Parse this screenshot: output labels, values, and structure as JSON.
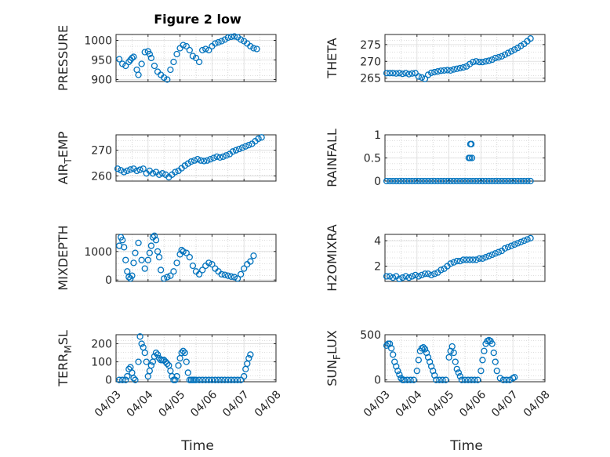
{
  "figure": {
    "title": "Figure 2 low",
    "xlabel": "Time"
  },
  "colors": {
    "marker": "#0072BD",
    "axis": "#262626",
    "grid": "#bdbdbd"
  },
  "chart_data": [
    {
      "type": "scatter",
      "ylabel": "PRESSURE",
      "ylim": [
        895,
        1015
      ],
      "yticks": [
        900,
        950,
        1000
      ],
      "xlim": [
        0,
        5
      ],
      "show_xticklabels": false,
      "x": [
        0.1,
        0.2,
        0.3,
        0.4,
        0.45,
        0.5,
        0.55,
        0.65,
        0.7,
        0.8,
        0.9,
        1.0,
        1.05,
        1.1,
        1.2,
        1.3,
        1.4,
        1.5,
        1.6,
        1.7,
        1.8,
        1.9,
        2.0,
        2.1,
        2.2,
        2.3,
        2.4,
        2.5,
        2.6,
        2.7,
        2.8,
        2.9,
        3.0,
        3.1,
        3.2,
        3.3,
        3.4,
        3.5,
        3.6,
        3.7,
        3.8,
        3.9,
        4.0,
        4.1,
        4.2,
        4.3,
        4.4
      ],
      "y": [
        952,
        940,
        935,
        945,
        950,
        955,
        958,
        925,
        912,
        940,
        970,
        972,
        965,
        955,
        935,
        920,
        912,
        905,
        900,
        925,
        945,
        965,
        980,
        988,
        985,
        975,
        960,
        955,
        945,
        975,
        978,
        975,
        985,
        992,
        995,
        998,
        1002,
        1007,
        1009,
        1010,
        1008,
        1002,
        998,
        992,
        985,
        980,
        978
      ]
    },
    {
      "type": "scatter",
      "ylabel": "THETA",
      "ylim": [
        264,
        278
      ],
      "yticks": [
        265,
        270,
        275
      ],
      "xlim": [
        0,
        5
      ],
      "show_xticklabels": false,
      "x": [
        0.05,
        0.15,
        0.25,
        0.35,
        0.45,
        0.55,
        0.65,
        0.75,
        0.85,
        0.95,
        1.05,
        1.15,
        1.25,
        1.35,
        1.45,
        1.55,
        1.65,
        1.75,
        1.85,
        1.95,
        2.05,
        2.15,
        2.25,
        2.35,
        2.45,
        2.55,
        2.65,
        2.75,
        2.85,
        2.95,
        3.05,
        3.15,
        3.25,
        3.35,
        3.45,
        3.55,
        3.65,
        3.75,
        3.85,
        3.95,
        4.05,
        4.15,
        4.25,
        4.35,
        4.45,
        4.55
      ],
      "y": [
        266.5,
        266.5,
        266.5,
        266.4,
        266.5,
        266.3,
        266.5,
        266.2,
        266.4,
        266.5,
        265.5,
        265.2,
        264.8,
        266,
        266.6,
        266.8,
        267,
        267.2,
        267.3,
        267.4,
        267.3,
        267.6,
        267.8,
        268,
        268.2,
        268.5,
        269.2,
        269.8,
        270,
        269.8,
        269.8,
        270,
        270.2,
        270.5,
        271,
        271.2,
        271.5,
        272,
        272.5,
        273,
        273.5,
        274,
        274.6,
        275.2,
        276,
        276.8
      ]
    },
    {
      "type": "scatter",
      "ylabel": "AIR_TEMP",
      "ylim": [
        258,
        276
      ],
      "yticks": [
        260,
        270
      ],
      "xlim": [
        0,
        5
      ],
      "show_xticklabels": false,
      "x": [
        0.05,
        0.15,
        0.25,
        0.35,
        0.45,
        0.55,
        0.65,
        0.75,
        0.85,
        0.95,
        1.05,
        1.15,
        1.25,
        1.35,
        1.45,
        1.55,
        1.65,
        1.75,
        1.85,
        1.95,
        2.05,
        2.15,
        2.25,
        2.35,
        2.45,
        2.55,
        2.65,
        2.75,
        2.85,
        2.95,
        3.05,
        3.15,
        3.25,
        3.35,
        3.45,
        3.55,
        3.65,
        3.75,
        3.85,
        3.95,
        4.05,
        4.15,
        4.25,
        4.35,
        4.45,
        4.55
      ],
      "y": [
        262.8,
        262.2,
        261.5,
        262,
        262.5,
        262.8,
        262,
        262.4,
        262.8,
        261,
        262,
        261,
        261.5,
        260.5,
        261,
        260.5,
        259.5,
        260.5,
        261.5,
        262,
        263,
        264,
        264.8,
        265.6,
        266,
        266.5,
        266,
        265.8,
        266,
        266.5,
        267,
        267.5,
        267.2,
        267.5,
        268,
        268.5,
        269.5,
        270,
        270.5,
        271,
        271.5,
        272,
        272.5,
        273.5,
        274.5,
        275
      ]
    },
    {
      "type": "scatter",
      "ylabel": "RAINFALL",
      "ylim": [
        0,
        1
      ],
      "yticks": [
        0,
        0.5,
        1
      ],
      "xlim": [
        0,
        5
      ],
      "show_xticklabels": false,
      "x": [
        0.05,
        0.15,
        0.25,
        0.35,
        0.45,
        0.55,
        0.65,
        0.75,
        0.85,
        0.95,
        1.05,
        1.15,
        1.25,
        1.35,
        1.45,
        1.55,
        1.65,
        1.75,
        1.85,
        1.95,
        2.05,
        2.15,
        2.25,
        2.35,
        2.45,
        2.55,
        2.65,
        2.75,
        2.85,
        2.95,
        3.05,
        3.15,
        3.25,
        3.35,
        3.45,
        3.55,
        3.65,
        3.75,
        3.85,
        3.95,
        4.05,
        4.15,
        4.25,
        4.35,
        4.45,
        4.55,
        2.62,
        2.72,
        2.67,
        2.7,
        2.66
      ],
      "y": [
        0,
        0,
        0,
        0,
        0,
        0,
        0,
        0,
        0,
        0,
        0,
        0,
        0,
        0,
        0,
        0,
        0,
        0,
        0,
        0,
        0,
        0,
        0,
        0,
        0,
        0,
        0,
        0,
        0,
        0,
        0,
        0,
        0,
        0,
        0,
        0,
        0,
        0,
        0,
        0,
        0,
        0,
        0,
        0,
        0,
        0,
        0.5,
        0.5,
        0.8,
        0.8,
        0.5
      ]
    },
    {
      "type": "scatter",
      "ylabel": "MIXDEPTH",
      "ylim": [
        -50,
        1600
      ],
      "yticks": [
        0,
        1000
      ],
      "xlim": [
        0,
        5
      ],
      "show_xticklabels": false,
      "x": [
        0.1,
        0.15,
        0.2,
        0.25,
        0.3,
        0.35,
        0.4,
        0.45,
        0.5,
        0.55,
        0.6,
        0.7,
        0.8,
        0.9,
        1.0,
        1.05,
        1.1,
        1.15,
        1.2,
        1.25,
        1.3,
        1.35,
        1.4,
        1.5,
        1.6,
        1.7,
        1.8,
        1.9,
        2.0,
        2.05,
        2.1,
        2.2,
        2.3,
        2.4,
        2.5,
        2.6,
        2.7,
        2.8,
        2.9,
        3.0,
        3.1,
        3.2,
        3.3,
        3.4,
        3.5,
        3.6,
        3.7,
        3.8,
        3.9,
        4.0,
        4.1,
        4.2,
        4.3
      ],
      "y": [
        1200,
        1500,
        1400,
        1150,
        700,
        300,
        100,
        50,
        150,
        600,
        950,
        1300,
        700,
        400,
        700,
        950,
        1200,
        1500,
        1550,
        1400,
        1000,
        800,
        350,
        50,
        100,
        150,
        300,
        600,
        900,
        1050,
        1000,
        950,
        800,
        500,
        300,
        200,
        350,
        500,
        600,
        550,
        400,
        300,
        200,
        180,
        150,
        120,
        100,
        50,
        200,
        400,
        550,
        650,
        850
      ]
    },
    {
      "type": "scatter",
      "ylabel": "H2OMIXRA",
      "ylim": [
        0.8,
        4.5
      ],
      "yticks": [
        2,
        4
      ],
      "xlim": [
        0,
        5
      ],
      "show_xticklabels": false,
      "x": [
        0.05,
        0.15,
        0.25,
        0.35,
        0.45,
        0.55,
        0.65,
        0.75,
        0.85,
        0.95,
        1.05,
        1.15,
        1.25,
        1.35,
        1.45,
        1.55,
        1.65,
        1.75,
        1.85,
        1.95,
        2.05,
        2.15,
        2.25,
        2.35,
        2.45,
        2.55,
        2.65,
        2.75,
        2.85,
        2.95,
        3.05,
        3.15,
        3.25,
        3.35,
        3.45,
        3.55,
        3.65,
        3.75,
        3.85,
        3.95,
        4.05,
        4.15,
        4.25,
        4.35,
        4.45,
        4.55
      ],
      "y": [
        1.2,
        1.2,
        1.1,
        1.2,
        1,
        1.1,
        1.2,
        1.1,
        1.2,
        1.3,
        1.2,
        1.3,
        1.4,
        1.4,
        1.3,
        1.4,
        1.5,
        1.7,
        1.8,
        2,
        2.2,
        2.3,
        2.4,
        2.4,
        2.5,
        2.5,
        2.5,
        2.5,
        2.5,
        2.6,
        2.6,
        2.7,
        2.8,
        2.9,
        3,
        3.1,
        3.2,
        3.4,
        3.5,
        3.6,
        3.7,
        3.8,
        3.9,
        4,
        4.1,
        4.2
      ]
    },
    {
      "type": "scatter",
      "ylabel": "TERR_MSL",
      "ylim": [
        -10,
        250
      ],
      "yticks": [
        0,
        100,
        200
      ],
      "xlim": [
        0,
        5
      ],
      "show_xticklabels": true,
      "xticks": [
        0,
        1,
        2,
        3,
        4,
        5
      ],
      "xticklabels": [
        "04/03",
        "04/04",
        "04/05",
        "04/06",
        "04/07",
        "04/08"
      ],
      "x": [
        0.1,
        0.2,
        0.3,
        0.35,
        0.4,
        0.45,
        0.5,
        0.55,
        0.6,
        0.7,
        0.75,
        0.8,
        0.85,
        0.9,
        0.95,
        1.0,
        1.05,
        1.1,
        1.15,
        1.2,
        1.25,
        1.3,
        1.35,
        1.4,
        1.45,
        1.5,
        1.55,
        1.6,
        1.65,
        1.7,
        1.75,
        1.8,
        1.85,
        1.9,
        1.95,
        2.0,
        2.05,
        2.1,
        2.15,
        2.2,
        2.25,
        2.3,
        2.35,
        2.4,
        2.45,
        2.5,
        2.6,
        2.7,
        2.8,
        2.9,
        3.0,
        3.1,
        3.2,
        3.3,
        3.4,
        3.5,
        3.6,
        3.7,
        3.8,
        3.9,
        4.0,
        4.05,
        4.1,
        4.15,
        4.2
      ],
      "y": [
        0,
        0,
        0,
        20,
        60,
        70,
        40,
        10,
        0,
        100,
        240,
        200,
        180,
        150,
        100,
        20,
        50,
        80,
        100,
        130,
        150,
        140,
        120,
        110,
        110,
        110,
        100,
        90,
        80,
        50,
        20,
        0,
        0,
        20,
        80,
        120,
        150,
        160,
        150,
        100,
        40,
        0,
        0,
        0,
        0,
        0,
        0,
        0,
        0,
        0,
        0,
        0,
        0,
        0,
        0,
        0,
        0,
        0,
        0,
        0,
        20,
        60,
        90,
        120,
        140
      ]
    },
    {
      "type": "scatter",
      "ylabel": "SUN_FLUX",
      "ylim": [
        -20,
        500
      ],
      "yticks": [
        0,
        500
      ],
      "xlim": [
        0,
        5
      ],
      "show_xticklabels": true,
      "xticks": [
        0,
        1,
        2,
        3,
        4,
        5
      ],
      "xticklabels": [
        "04/03",
        "04/04",
        "04/05",
        "04/06",
        "04/07",
        "04/08"
      ],
      "x": [
        0.05,
        0.1,
        0.15,
        0.2,
        0.25,
        0.3,
        0.35,
        0.4,
        0.45,
        0.5,
        0.55,
        0.6,
        0.7,
        0.8,
        0.9,
        1.0,
        1.05,
        1.1,
        1.15,
        1.2,
        1.25,
        1.3,
        1.35,
        1.4,
        1.45,
        1.5,
        1.55,
        1.6,
        1.7,
        1.8,
        1.9,
        2.0,
        2.05,
        2.1,
        2.15,
        2.2,
        2.25,
        2.3,
        2.35,
        2.4,
        2.5,
        2.6,
        2.7,
        2.8,
        2.9,
        3.0,
        3.05,
        3.1,
        3.15,
        3.2,
        3.25,
        3.3,
        3.35,
        3.4,
        3.45,
        3.5,
        3.6,
        3.7,
        3.8,
        3.9,
        4.0,
        4.05
      ],
      "y": [
        380,
        400,
        400,
        350,
        280,
        200,
        150,
        100,
        60,
        20,
        0,
        0,
        0,
        0,
        0,
        100,
        220,
        320,
        350,
        360,
        340,
        300,
        250,
        200,
        150,
        100,
        50,
        0,
        0,
        0,
        0,
        250,
        320,
        370,
        300,
        200,
        120,
        80,
        40,
        0,
        0,
        0,
        0,
        0,
        0,
        100,
        220,
        320,
        400,
        430,
        440,
        430,
        400,
        300,
        200,
        100,
        20,
        0,
        0,
        0,
        20,
        30
      ]
    }
  ]
}
